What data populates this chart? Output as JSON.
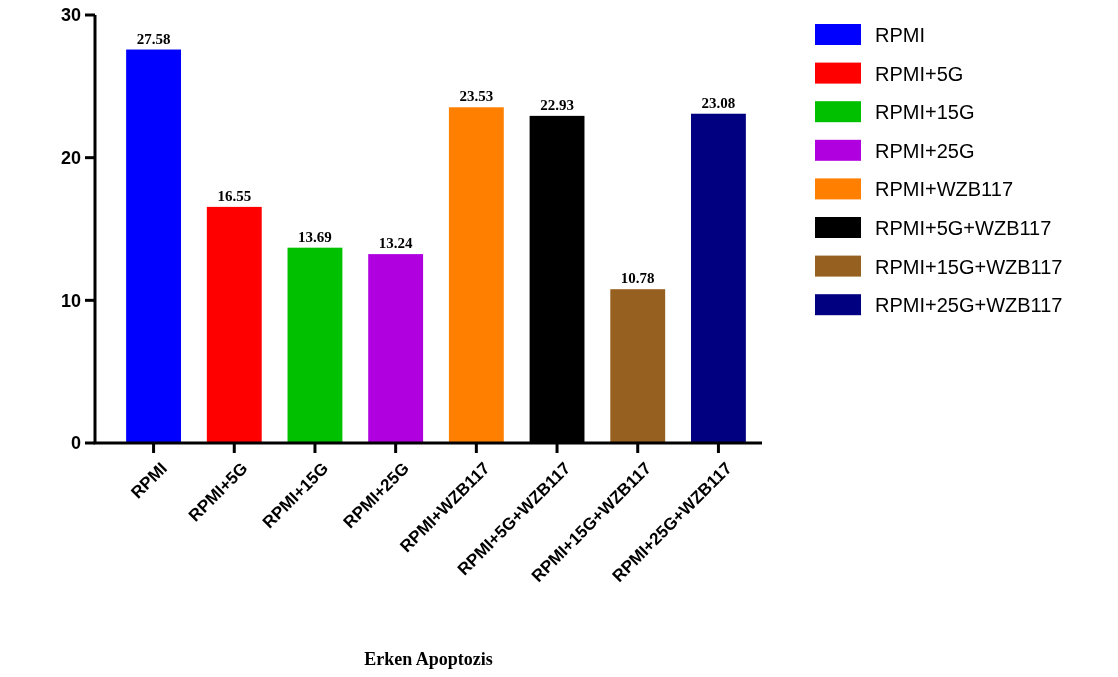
{
  "chart_data": {
    "type": "bar",
    "xlabel": "Erken Apoptozis",
    "categories": [
      "RPMI",
      "RPMI+5G",
      "RPMI+15G",
      "RPMI+25G",
      "RPMI+WZB117",
      "RPMI+5G+WZB117",
      "RPMI+15G+WZB117",
      "RPMI+25G+WZB117"
    ],
    "series": [
      {
        "name": "RPMI",
        "color": "#0000ff",
        "values": [
          27.58,
          null,
          null,
          null,
          null,
          null,
          null,
          null
        ]
      },
      {
        "name": "RPMI+5G",
        "color": "#ff0000",
        "values": [
          null,
          16.55,
          null,
          null,
          null,
          null,
          null,
          null
        ]
      },
      {
        "name": "RPMI+15G",
        "color": "#00c000",
        "values": [
          null,
          null,
          13.69,
          null,
          null,
          null,
          null,
          null
        ]
      },
      {
        "name": "RPMI+25G",
        "color": "#b000e0",
        "values": [
          null,
          null,
          null,
          13.24,
          null,
          null,
          null,
          null
        ]
      },
      {
        "name": "RPMI+WZB117",
        "color": "#ff8000",
        "values": [
          null,
          null,
          null,
          null,
          23.53,
          null,
          null,
          null
        ]
      },
      {
        "name": "RPMI+5G+WZB117",
        "color": "#000000",
        "values": [
          null,
          null,
          null,
          null,
          null,
          22.93,
          null,
          null
        ]
      },
      {
        "name": "RPMI+15G+WZB117",
        "color": "#966020",
        "values": [
          null,
          null,
          null,
          null,
          null,
          null,
          10.78,
          null
        ]
      },
      {
        "name": "RPMI+25G+WZB117",
        "color": "#000080",
        "values": [
          null,
          null,
          null,
          null,
          null,
          null,
          null,
          23.08
        ]
      }
    ],
    "ylim": [
      0,
      30
    ],
    "yticks": [
      0,
      10,
      20,
      30
    ],
    "grid": false,
    "legend": "right",
    "data_labels": true
  }
}
